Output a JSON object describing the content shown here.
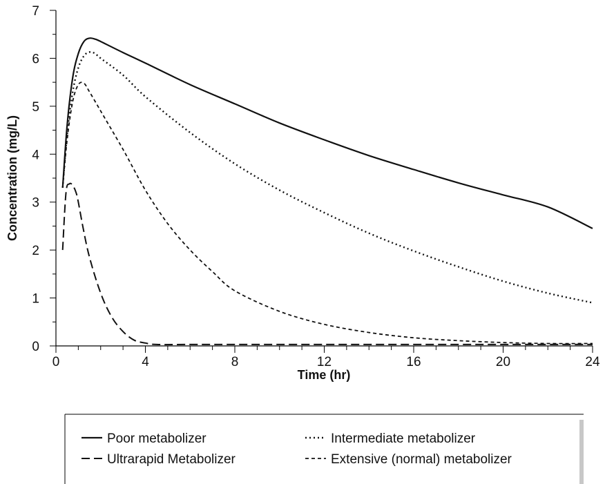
{
  "chart_data": {
    "type": "line",
    "title": "",
    "xlabel": "Time (hr)",
    "ylabel": "Concentration (mg/L)",
    "xlim": [
      0,
      24
    ],
    "ylim": [
      0,
      7
    ],
    "x_ticks": [
      0,
      4,
      8,
      12,
      16,
      20,
      24
    ],
    "y_ticks": [
      0,
      1,
      2,
      3,
      4,
      5,
      6,
      7
    ],
    "grid": false,
    "legend_position": "bottom",
    "series": [
      {
        "name": "Poor metabolizer",
        "dash": "solid",
        "x": [
          0.3,
          0.5,
          0.75,
          1.0,
          1.25,
          1.5,
          1.75,
          2,
          3,
          4,
          6,
          8,
          10,
          12,
          14,
          16,
          18,
          20,
          22,
          24
        ],
        "y": [
          3.3,
          4.6,
          5.6,
          6.1,
          6.35,
          6.42,
          6.4,
          6.35,
          6.12,
          5.9,
          5.45,
          5.05,
          4.65,
          4.3,
          3.97,
          3.68,
          3.4,
          3.15,
          2.9,
          2.45
        ]
      },
      {
        "name": "Intermediate metabolizer",
        "dash": "dotted",
        "x": [
          0.3,
          0.5,
          0.75,
          1.0,
          1.25,
          1.5,
          1.75,
          2,
          3,
          4,
          6,
          8,
          10,
          12,
          14,
          16,
          18,
          20,
          22,
          24
        ],
        "y": [
          3.3,
          4.4,
          5.3,
          5.8,
          6.05,
          6.13,
          6.1,
          6.0,
          5.65,
          5.2,
          4.45,
          3.8,
          3.25,
          2.78,
          2.35,
          1.98,
          1.65,
          1.35,
          1.1,
          0.9
        ]
      },
      {
        "name": "Ultrarapid Metabolizer",
        "dash": "dashed",
        "x": [
          0.3,
          0.45,
          0.6,
          0.75,
          0.9,
          1.0,
          1.2,
          1.5,
          2,
          2.5,
          3,
          3.5,
          4,
          4.5,
          6,
          8,
          12,
          16,
          20,
          24
        ],
        "y": [
          2.0,
          3.2,
          3.38,
          3.35,
          3.2,
          3.0,
          2.5,
          1.85,
          1.1,
          0.6,
          0.3,
          0.12,
          0.06,
          0.03,
          0.03,
          0.03,
          0.03,
          0.03,
          0.03,
          0.03
        ]
      },
      {
        "name": "Extensive (normal) metabolizer",
        "dash": "short-dashed",
        "x": [
          0.3,
          0.5,
          0.75,
          1.0,
          1.25,
          1.5,
          2,
          3,
          4,
          5,
          6,
          7,
          8,
          10,
          12,
          14,
          16,
          18,
          20,
          22,
          24
        ],
        "y": [
          3.3,
          4.3,
          5.1,
          5.45,
          5.48,
          5.3,
          4.9,
          4.1,
          3.25,
          2.55,
          2.0,
          1.55,
          1.15,
          0.72,
          0.45,
          0.28,
          0.17,
          0.11,
          0.07,
          0.05,
          0.05
        ]
      }
    ]
  }
}
